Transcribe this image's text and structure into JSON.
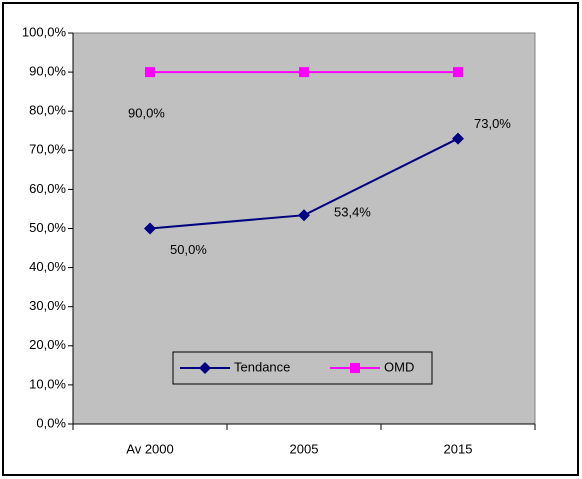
{
  "chart_data": {
    "type": "line",
    "categories": [
      "Av 2000",
      "2005",
      "2015"
    ],
    "series": [
      {
        "name": "Tendance",
        "color": "#000080",
        "values": [
          50.0,
          53.4,
          73.0
        ],
        "value_labels": [
          "50,0%",
          "53,4%",
          "73,0%"
        ]
      },
      {
        "name": "OMD",
        "color": "#ff00ff",
        "values": [
          90.0,
          90.0,
          90.0
        ],
        "value_labels": [
          "90,0%",
          null,
          null
        ]
      }
    ],
    "ylim": [
      0,
      100
    ],
    "yticks": [
      {
        "value": 0,
        "label": "0,0%"
      },
      {
        "value": 10,
        "label": "10,0%"
      },
      {
        "value": 20,
        "label": "20,0%"
      },
      {
        "value": 30,
        "label": "30,0%"
      },
      {
        "value": 40,
        "label": "40,0%"
      },
      {
        "value": 50,
        "label": "50,0%"
      },
      {
        "value": 60,
        "label": "60,0%"
      },
      {
        "value": 70,
        "label": "70,0%"
      },
      {
        "value": 80,
        "label": "80,0%"
      },
      {
        "value": 90,
        "label": "90,0%"
      },
      {
        "value": 100,
        "label": "100,0%"
      }
    ],
    "legend": "bottom"
  }
}
